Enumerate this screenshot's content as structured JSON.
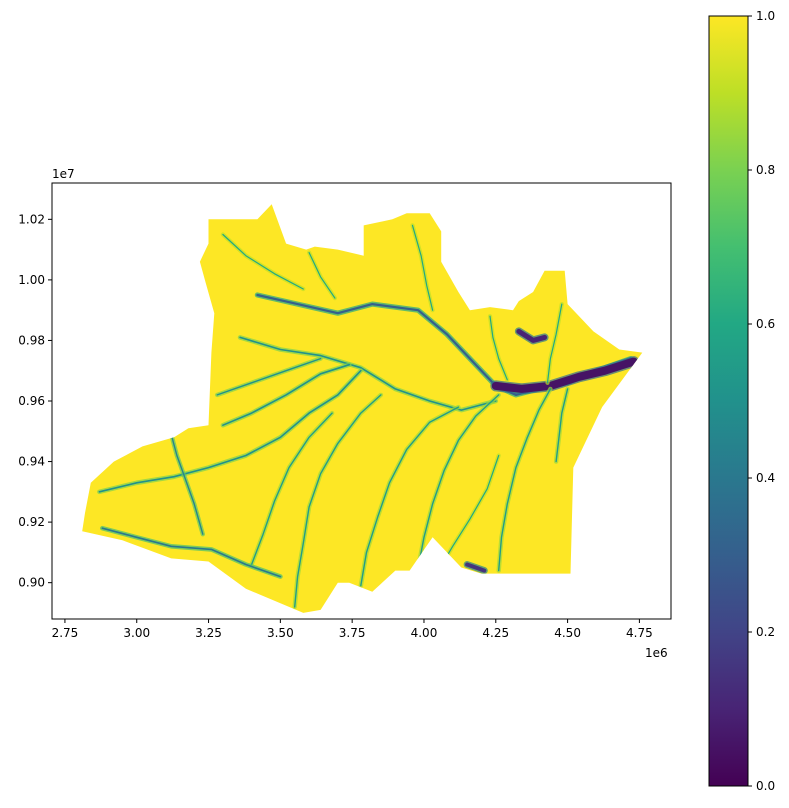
{
  "chart_data": {
    "type": "heatmap",
    "title": "",
    "xlabel": "",
    "ylabel": "",
    "x_ticks": [
      "2.75",
      "3.00",
      "3.25",
      "3.50",
      "3.75",
      "4.00",
      "4.25",
      "4.50",
      "4.75"
    ],
    "x_tick_values": [
      2750000,
      3000000,
      3250000,
      3500000,
      3750000,
      4000000,
      4250000,
      4500000,
      4750000
    ],
    "x_offset_label": "1e6",
    "y_ticks": [
      "0.90",
      "0.92",
      "0.94",
      "0.96",
      "0.98",
      "1.00",
      "1.02"
    ],
    "y_tick_values": [
      9000000,
      9200000,
      9400000,
      9600000,
      9800000,
      10000000,
      10200000
    ],
    "y_offset_label": "1e7",
    "xlim": [
      2705000,
      4860000
    ],
    "ylim": [
      8880000,
      10320000
    ],
    "colorbar": {
      "colormap": "viridis",
      "range": [
        0,
        1
      ],
      "ticks": [
        "0.0",
        "0.2",
        "0.4",
        "0.6",
        "0.8",
        "1.0"
      ],
      "tick_values": [
        0,
        0.2,
        0.4,
        0.6,
        0.8,
        1.0
      ]
    },
    "colors": {
      "high": "#fde725",
      "mid_high": "#a0da39",
      "mid": "#21918c",
      "low": "#3b528b",
      "lowest": "#440154"
    },
    "region_outline": [
      [
        3250000,
        10200000
      ],
      [
        3420000,
        10200000
      ],
      [
        3470000,
        10250000
      ],
      [
        3520000,
        10120000
      ],
      [
        3590000,
        10100000
      ],
      [
        3620000,
        10110000
      ],
      [
        3700000,
        10100000
      ],
      [
        3790000,
        10080000
      ],
      [
        3790000,
        10180000
      ],
      [
        3890000,
        10200000
      ],
      [
        3940000,
        10220000
      ],
      [
        4020000,
        10220000
      ],
      [
        4060000,
        10160000
      ],
      [
        4060000,
        10060000
      ],
      [
        4120000,
        9960000
      ],
      [
        4160000,
        9900000
      ],
      [
        4230000,
        9910000
      ],
      [
        4310000,
        9900000
      ],
      [
        4330000,
        9930000
      ],
      [
        4380000,
        9960000
      ],
      [
        4420000,
        10030000
      ],
      [
        4490000,
        10030000
      ],
      [
        4500000,
        9920000
      ],
      [
        4590000,
        9830000
      ],
      [
        4680000,
        9770000
      ],
      [
        4760000,
        9760000
      ],
      [
        4620000,
        9580000
      ],
      [
        4520000,
        9380000
      ],
      [
        4510000,
        9030000
      ],
      [
        4200000,
        9030000
      ],
      [
        4130000,
        9050000
      ],
      [
        4030000,
        9150000
      ],
      [
        3950000,
        9040000
      ],
      [
        3900000,
        9040000
      ],
      [
        3820000,
        8970000
      ],
      [
        3740000,
        9000000
      ],
      [
        3700000,
        9000000
      ],
      [
        3640000,
        8910000
      ],
      [
        3580000,
        8900000
      ],
      [
        3430000,
        8960000
      ],
      [
        3380000,
        8980000
      ],
      [
        3250000,
        9070000
      ],
      [
        3120000,
        9080000
      ],
      [
        2950000,
        9140000
      ],
      [
        2810000,
        9170000
      ],
      [
        2820000,
        9230000
      ],
      [
        2840000,
        9330000
      ],
      [
        2920000,
        9400000
      ],
      [
        3020000,
        9450000
      ],
      [
        3130000,
        9480000
      ],
      [
        3180000,
        9510000
      ],
      [
        3250000,
        9520000
      ],
      [
        3260000,
        9760000
      ],
      [
        3270000,
        9890000
      ],
      [
        3240000,
        9990000
      ],
      [
        3220000,
        10060000
      ],
      [
        3250000,
        10120000
      ]
    ],
    "river_channels": [
      {
        "level": 0.3,
        "width": 2.2,
        "points": [
          [
            3420000,
            9950000
          ],
          [
            3560000,
            9920000
          ],
          [
            3700000,
            9890000
          ],
          [
            3820000,
            9920000
          ],
          [
            3980000,
            9900000
          ],
          [
            4080000,
            9820000
          ],
          [
            4180000,
            9720000
          ],
          [
            4250000,
            9650000
          ],
          [
            4320000,
            9620000
          ],
          [
            4400000,
            9640000
          ],
          [
            4500000,
            9660000
          ],
          [
            4600000,
            9700000
          ],
          [
            4720000,
            9740000
          ]
        ]
      },
      {
        "level": 0.05,
        "width": 8,
        "points": [
          [
            4250000,
            9650000
          ],
          [
            4340000,
            9640000
          ],
          [
            4440000,
            9650000
          ],
          [
            4540000,
            9680000
          ],
          [
            4630000,
            9700000
          ],
          [
            4730000,
            9730000
          ]
        ]
      },
      {
        "level": 0.1,
        "width": 5,
        "points": [
          [
            4330000,
            9830000
          ],
          [
            4380000,
            9800000
          ],
          [
            4420000,
            9810000
          ]
        ]
      },
      {
        "level": 0.15,
        "width": 4,
        "points": [
          [
            4150000,
            9060000
          ],
          [
            4180000,
            9050000
          ],
          [
            4210000,
            9040000
          ]
        ]
      },
      {
        "level": 0.5,
        "width": 1.6,
        "points": [
          [
            3360000,
            9810000
          ],
          [
            3500000,
            9770000
          ],
          [
            3640000,
            9750000
          ],
          [
            3780000,
            9710000
          ],
          [
            3900000,
            9640000
          ],
          [
            4020000,
            9600000
          ],
          [
            4130000,
            9570000
          ],
          [
            4250000,
            9600000
          ]
        ]
      },
      {
        "level": 0.5,
        "width": 1.6,
        "points": [
          [
            2870000,
            9300000
          ],
          [
            3000000,
            9330000
          ],
          [
            3130000,
            9350000
          ],
          [
            3250000,
            9380000
          ],
          [
            3380000,
            9420000
          ],
          [
            3500000,
            9480000
          ],
          [
            3600000,
            9560000
          ],
          [
            3700000,
            9620000
          ],
          [
            3780000,
            9700000
          ]
        ]
      },
      {
        "level": 0.5,
        "width": 1.6,
        "points": [
          [
            3300000,
            9520000
          ],
          [
            3400000,
            9560000
          ],
          [
            3520000,
            9620000
          ],
          [
            3640000,
            9690000
          ],
          [
            3740000,
            9720000
          ]
        ]
      },
      {
        "level": 0.5,
        "width": 1.4,
        "points": [
          [
            3280000,
            9620000
          ],
          [
            3400000,
            9660000
          ],
          [
            3520000,
            9700000
          ],
          [
            3640000,
            9740000
          ]
        ]
      },
      {
        "level": 0.55,
        "width": 1.4,
        "points": [
          [
            3550000,
            8920000
          ],
          [
            3560000,
            9020000
          ],
          [
            3580000,
            9130000
          ],
          [
            3600000,
            9250000
          ],
          [
            3640000,
            9360000
          ],
          [
            3700000,
            9460000
          ],
          [
            3780000,
            9560000
          ],
          [
            3850000,
            9620000
          ]
        ]
      },
      {
        "level": 0.55,
        "width": 1.4,
        "points": [
          [
            3400000,
            9060000
          ],
          [
            3440000,
            9160000
          ],
          [
            3480000,
            9270000
          ],
          [
            3530000,
            9380000
          ],
          [
            3600000,
            9480000
          ],
          [
            3680000,
            9560000
          ]
        ]
      },
      {
        "level": 0.55,
        "width": 1.4,
        "points": [
          [
            3780000,
            8990000
          ],
          [
            3800000,
            9100000
          ],
          [
            3840000,
            9220000
          ],
          [
            3880000,
            9330000
          ],
          [
            3940000,
            9440000
          ],
          [
            4020000,
            9530000
          ],
          [
            4120000,
            9580000
          ]
        ]
      },
      {
        "level": 0.55,
        "width": 1.4,
        "points": [
          [
            3980000,
            9050000
          ],
          [
            4000000,
            9150000
          ],
          [
            4030000,
            9260000
          ],
          [
            4070000,
            9370000
          ],
          [
            4120000,
            9470000
          ],
          [
            4180000,
            9550000
          ],
          [
            4260000,
            9620000
          ]
        ]
      },
      {
        "level": 0.55,
        "width": 1.4,
        "points": [
          [
            4260000,
            9040000
          ],
          [
            4270000,
            9150000
          ],
          [
            4290000,
            9260000
          ],
          [
            4320000,
            9380000
          ],
          [
            4360000,
            9480000
          ],
          [
            4400000,
            9570000
          ],
          [
            4440000,
            9640000
          ]
        ]
      },
      {
        "level": 0.55,
        "width": 1.4,
        "points": [
          [
            4460000,
            9400000
          ],
          [
            4470000,
            9480000
          ],
          [
            4480000,
            9560000
          ],
          [
            4500000,
            9640000
          ]
        ]
      },
      {
        "level": 0.6,
        "width": 1.2,
        "points": [
          [
            4230000,
            9880000
          ],
          [
            4240000,
            9810000
          ],
          [
            4260000,
            9740000
          ],
          [
            4290000,
            9670000
          ]
        ]
      },
      {
        "level": 0.6,
        "width": 1.2,
        "points": [
          [
            4480000,
            9920000
          ],
          [
            4460000,
            9820000
          ],
          [
            4440000,
            9740000
          ],
          [
            4430000,
            9660000
          ]
        ]
      },
      {
        "level": 0.6,
        "width": 1.2,
        "points": [
          [
            3300000,
            10150000
          ],
          [
            3380000,
            10080000
          ],
          [
            3480000,
            10020000
          ],
          [
            3580000,
            9970000
          ]
        ]
      },
      {
        "level": 0.6,
        "width": 1.2,
        "points": [
          [
            3600000,
            10090000
          ],
          [
            3640000,
            10010000
          ],
          [
            3690000,
            9940000
          ]
        ]
      },
      {
        "level": 0.6,
        "width": 1.2,
        "points": [
          [
            3960000,
            10180000
          ],
          [
            3990000,
            10080000
          ],
          [
            4010000,
            9980000
          ],
          [
            4030000,
            9900000
          ]
        ]
      },
      {
        "level": 0.4,
        "width": 1.6,
        "points": [
          [
            2880000,
            9180000
          ],
          [
            3000000,
            9150000
          ],
          [
            3120000,
            9120000
          ],
          [
            3260000,
            9110000
          ],
          [
            3380000,
            9060000
          ],
          [
            3500000,
            9020000
          ]
        ]
      },
      {
        "level": 0.45,
        "width": 1.4,
        "points": [
          [
            3120000,
            9490000
          ],
          [
            3140000,
            9420000
          ],
          [
            3170000,
            9340000
          ],
          [
            3200000,
            9260000
          ],
          [
            3230000,
            9160000
          ]
        ]
      },
      {
        "level": 0.6,
        "width": 1.2,
        "points": [
          [
            4050000,
            9040000
          ],
          [
            4100000,
            9120000
          ],
          [
            4160000,
            9210000
          ],
          [
            4220000,
            9310000
          ],
          [
            4260000,
            9420000
          ]
        ]
      }
    ]
  }
}
